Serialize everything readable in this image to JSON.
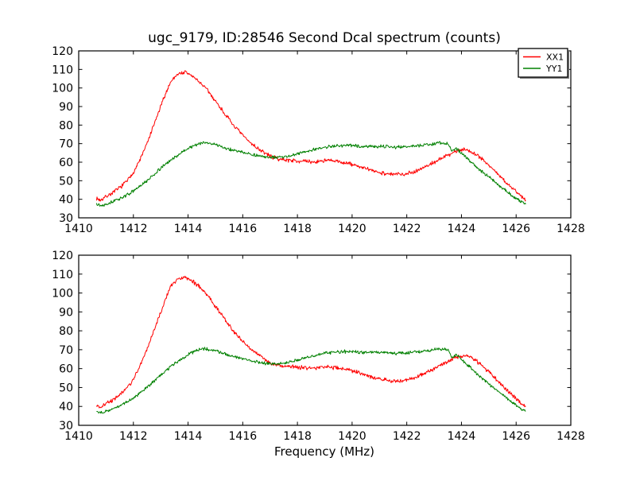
{
  "figure": {
    "title": "ugc_9179, ID:28546 Second Dcal spectrum (counts)",
    "xlabel": "Frequency (MHz)",
    "background_color": "#ffffff",
    "axis_color": "#000000"
  },
  "chart_data": [
    {
      "type": "line",
      "title": "ugc_9179, ID:28546 Second Dcal spectrum (counts)",
      "xlabel": "",
      "ylabel": "",
      "xlim": [
        1410,
        1428
      ],
      "ylim": [
        30,
        120
      ],
      "x_ticks": [
        1410,
        1412,
        1414,
        1416,
        1418,
        1420,
        1422,
        1424,
        1426,
        1428
      ],
      "y_ticks": [
        30,
        40,
        50,
        60,
        70,
        80,
        90,
        100,
        110,
        120
      ],
      "grid": false,
      "legend": {
        "visible": true,
        "position": "upper right",
        "entries": [
          {
            "label": "XX1",
            "color": "#ff0000"
          },
          {
            "label": "YY1",
            "color": "#008000"
          }
        ]
      },
      "series": [
        {
          "name": "XX1",
          "color": "#ff0000",
          "noise": 1.3,
          "seed": 7,
          "points": [
            [
              1410.65,
              40.5
            ],
            [
              1410.8,
              39.5
            ],
            [
              1411.0,
              41.5
            ],
            [
              1411.3,
              44
            ],
            [
              1411.6,
              47.5
            ],
            [
              1411.9,
              52
            ],
            [
              1412.2,
              60
            ],
            [
              1412.5,
              70
            ],
            [
              1412.8,
              82
            ],
            [
              1413.1,
              94
            ],
            [
              1413.35,
              103
            ],
            [
              1413.6,
              107.5
            ],
            [
              1413.9,
              108.5
            ],
            [
              1414.1,
              107
            ],
            [
              1414.4,
              103.5
            ],
            [
              1414.7,
              99
            ],
            [
              1415.0,
              93
            ],
            [
              1415.3,
              87
            ],
            [
              1415.6,
              81
            ],
            [
              1415.9,
              76
            ],
            [
              1416.2,
              71.5
            ],
            [
              1416.5,
              68
            ],
            [
              1416.8,
              65
            ],
            [
              1417.1,
              62.5
            ],
            [
              1417.4,
              61.5
            ],
            [
              1417.8,
              61
            ],
            [
              1418.2,
              60.5
            ],
            [
              1418.6,
              60
            ],
            [
              1419.0,
              61
            ],
            [
              1419.4,
              60.5
            ],
            [
              1419.8,
              59.5
            ],
            [
              1420.2,
              58
            ],
            [
              1420.6,
              56
            ],
            [
              1421.0,
              54.5
            ],
            [
              1421.4,
              53.5
            ],
            [
              1421.8,
              53.5
            ],
            [
              1422.2,
              54.5
            ],
            [
              1422.6,
              57
            ],
            [
              1423.0,
              60
            ],
            [
              1423.4,
              63
            ],
            [
              1423.8,
              66
            ],
            [
              1424.1,
              67
            ],
            [
              1424.4,
              65.5
            ],
            [
              1424.7,
              62.5
            ],
            [
              1425.0,
              58.5
            ],
            [
              1425.3,
              54
            ],
            [
              1425.6,
              49.5
            ],
            [
              1425.9,
              45.5
            ],
            [
              1426.15,
              42
            ],
            [
              1426.35,
              40
            ]
          ]
        },
        {
          "name": "YY1",
          "color": "#008000",
          "noise": 1.0,
          "seed": 13,
          "points": [
            [
              1410.65,
              38
            ],
            [
              1410.8,
              36.5
            ],
            [
              1411.0,
              37.5
            ],
            [
              1411.3,
              39
            ],
            [
              1411.6,
              41
            ],
            [
              1411.9,
              43.5
            ],
            [
              1412.2,
              46.5
            ],
            [
              1412.5,
              50
            ],
            [
              1412.8,
              54
            ],
            [
              1413.1,
              58
            ],
            [
              1413.4,
              61.5
            ],
            [
              1413.7,
              64.5
            ],
            [
              1414.0,
              67.5
            ],
            [
              1414.3,
              69.5
            ],
            [
              1414.6,
              70.5
            ],
            [
              1414.9,
              70
            ],
            [
              1415.2,
              68.5
            ],
            [
              1415.5,
              67
            ],
            [
              1415.8,
              66
            ],
            [
              1416.1,
              65
            ],
            [
              1416.4,
              64
            ],
            [
              1416.7,
              63
            ],
            [
              1417.0,
              62.5
            ],
            [
              1417.3,
              62.5
            ],
            [
              1417.6,
              63
            ],
            [
              1418.0,
              64.5
            ],
            [
              1418.4,
              66
            ],
            [
              1418.8,
              67.5
            ],
            [
              1419.2,
              68.5
            ],
            [
              1419.6,
              69
            ],
            [
              1420.0,
              69
            ],
            [
              1420.4,
              68.5
            ],
            [
              1420.8,
              68.5
            ],
            [
              1421.2,
              68.5
            ],
            [
              1421.6,
              68
            ],
            [
              1422.0,
              68.5
            ],
            [
              1422.4,
              69
            ],
            [
              1422.8,
              69.5
            ],
            [
              1423.2,
              70.5
            ],
            [
              1423.5,
              70
            ],
            [
              1423.65,
              66
            ],
            [
              1423.8,
              67.5
            ],
            [
              1424.1,
              63.5
            ],
            [
              1424.4,
              59.5
            ],
            [
              1424.7,
              55.5
            ],
            [
              1425.0,
              52
            ],
            [
              1425.3,
              48.5
            ],
            [
              1425.6,
              45
            ],
            [
              1425.9,
              41.5
            ],
            [
              1426.15,
              39
            ],
            [
              1426.35,
              37.5
            ]
          ]
        }
      ]
    },
    {
      "type": "line",
      "title": "",
      "xlabel": "Frequency (MHz)",
      "ylabel": "",
      "xlim": [
        1410,
        1428
      ],
      "ylim": [
        30,
        120
      ],
      "x_ticks": [
        1410,
        1412,
        1414,
        1416,
        1418,
        1420,
        1422,
        1424,
        1426,
        1428
      ],
      "y_ticks": [
        30,
        40,
        50,
        60,
        70,
        80,
        90,
        100,
        110,
        120
      ],
      "grid": false,
      "legend": {
        "visible": false,
        "position": "",
        "entries": []
      },
      "series": [
        {
          "name": "XX1",
          "color": "#ff0000",
          "noise": 1.3,
          "seed": 21,
          "points": [
            [
              1410.65,
              40.5
            ],
            [
              1410.8,
              39.5
            ],
            [
              1411.0,
              41.5
            ],
            [
              1411.3,
              44
            ],
            [
              1411.6,
              47.5
            ],
            [
              1411.9,
              52
            ],
            [
              1412.2,
              60
            ],
            [
              1412.5,
              70
            ],
            [
              1412.8,
              82
            ],
            [
              1413.1,
              94
            ],
            [
              1413.35,
              103
            ],
            [
              1413.6,
              107.5
            ],
            [
              1413.9,
              108.5
            ],
            [
              1414.1,
              107
            ],
            [
              1414.4,
              103.5
            ],
            [
              1414.7,
              99
            ],
            [
              1415.0,
              93
            ],
            [
              1415.3,
              87
            ],
            [
              1415.6,
              81
            ],
            [
              1415.9,
              76
            ],
            [
              1416.2,
              71.5
            ],
            [
              1416.5,
              68
            ],
            [
              1416.8,
              65
            ],
            [
              1417.1,
              62.5
            ],
            [
              1417.4,
              61.5
            ],
            [
              1417.8,
              61
            ],
            [
              1418.2,
              60.5
            ],
            [
              1418.6,
              60
            ],
            [
              1419.0,
              61
            ],
            [
              1419.4,
              60.5
            ],
            [
              1419.8,
              59.5
            ],
            [
              1420.2,
              58
            ],
            [
              1420.6,
              56
            ],
            [
              1421.0,
              54.5
            ],
            [
              1421.4,
              53.5
            ],
            [
              1421.8,
              53.5
            ],
            [
              1422.2,
              54.5
            ],
            [
              1422.6,
              57
            ],
            [
              1423.0,
              60
            ],
            [
              1423.4,
              63
            ],
            [
              1423.8,
              66
            ],
            [
              1424.1,
              67
            ],
            [
              1424.4,
              65.5
            ],
            [
              1424.7,
              62.5
            ],
            [
              1425.0,
              58.5
            ],
            [
              1425.3,
              54
            ],
            [
              1425.6,
              49.5
            ],
            [
              1425.9,
              45.5
            ],
            [
              1426.15,
              42
            ],
            [
              1426.35,
              40
            ]
          ]
        },
        {
          "name": "YY1",
          "color": "#008000",
          "noise": 1.0,
          "seed": 29,
          "points": [
            [
              1410.65,
              38
            ],
            [
              1410.8,
              36.5
            ],
            [
              1411.0,
              37.5
            ],
            [
              1411.3,
              39
            ],
            [
              1411.6,
              41
            ],
            [
              1411.9,
              43.5
            ],
            [
              1412.2,
              46.5
            ],
            [
              1412.5,
              50
            ],
            [
              1412.8,
              54
            ],
            [
              1413.1,
              58
            ],
            [
              1413.4,
              61.5
            ],
            [
              1413.7,
              64.5
            ],
            [
              1414.0,
              67.5
            ],
            [
              1414.3,
              69.5
            ],
            [
              1414.6,
              70.5
            ],
            [
              1414.9,
              70
            ],
            [
              1415.2,
              68.5
            ],
            [
              1415.5,
              67
            ],
            [
              1415.8,
              66
            ],
            [
              1416.1,
              65
            ],
            [
              1416.4,
              64
            ],
            [
              1416.7,
              63
            ],
            [
              1417.0,
              62.5
            ],
            [
              1417.3,
              62.5
            ],
            [
              1417.6,
              63
            ],
            [
              1418.0,
              64.5
            ],
            [
              1418.4,
              66
            ],
            [
              1418.8,
              67.5
            ],
            [
              1419.2,
              68.5
            ],
            [
              1419.6,
              69
            ],
            [
              1420.0,
              69
            ],
            [
              1420.4,
              68.5
            ],
            [
              1420.8,
              68.5
            ],
            [
              1421.2,
              68.5
            ],
            [
              1421.6,
              68
            ],
            [
              1422.0,
              68.5
            ],
            [
              1422.4,
              69
            ],
            [
              1422.8,
              69.5
            ],
            [
              1423.2,
              70.5
            ],
            [
              1423.5,
              70
            ],
            [
              1423.65,
              66
            ],
            [
              1423.8,
              67.5
            ],
            [
              1424.1,
              63.5
            ],
            [
              1424.4,
              59.5
            ],
            [
              1424.7,
              55.5
            ],
            [
              1425.0,
              52
            ],
            [
              1425.3,
              48.5
            ],
            [
              1425.6,
              45
            ],
            [
              1425.9,
              41.5
            ],
            [
              1426.15,
              39
            ],
            [
              1426.35,
              37.5
            ]
          ]
        }
      ]
    }
  ]
}
